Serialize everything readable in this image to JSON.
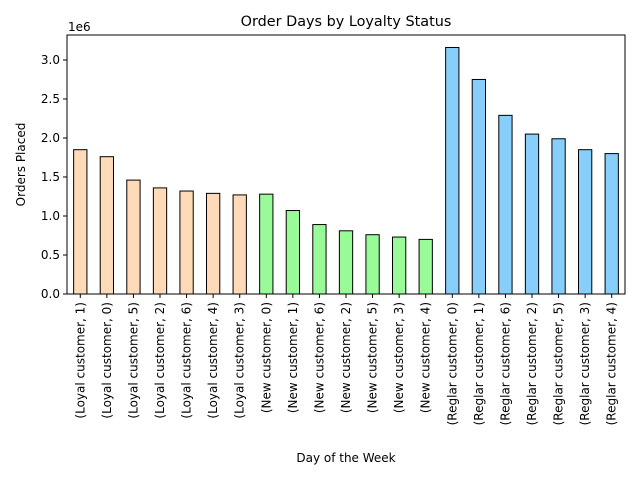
{
  "chart_data": {
    "type": "bar",
    "title": "Order Days by Loyalty Status",
    "xlabel": "Day of the Week",
    "ylabel": "Orders Placed",
    "y_offset_label": "1e6",
    "ylim": [
      0,
      3.32
    ],
    "yticks": [
      0.0,
      0.5,
      1.0,
      1.5,
      2.0,
      2.5,
      3.0
    ],
    "ytick_labels": [
      "0.0",
      "0.5",
      "1.0",
      "1.5",
      "2.0",
      "2.5",
      "3.0"
    ],
    "grid": false,
    "legend": "none",
    "categories": [
      "(Loyal customer, 1)",
      "(Loyal customer, 0)",
      "(Loyal customer, 5)",
      "(Loyal customer, 2)",
      "(Loyal customer, 6)",
      "(Loyal customer, 4)",
      "(Loyal customer, 3)",
      "(New customer, 0)",
      "(New customer, 1)",
      "(New customer, 6)",
      "(New customer, 2)",
      "(New customer, 5)",
      "(New customer, 3)",
      "(New customer, 4)",
      "(Reglar customer, 0)",
      "(Reglar customer, 1)",
      "(Reglar customer, 6)",
      "(Reglar customer, 2)",
      "(Reglar customer, 5)",
      "(Reglar customer, 3)",
      "(Reglar customer, 4)"
    ],
    "values": [
      1.85,
      1.76,
      1.46,
      1.36,
      1.32,
      1.29,
      1.27,
      1.28,
      1.07,
      0.89,
      0.81,
      0.76,
      0.73,
      0.7,
      3.16,
      2.75,
      2.29,
      2.05,
      1.99,
      1.85,
      1.8
    ],
    "bar_colors": [
      "#ffdab9",
      "#ffdab9",
      "#ffdab9",
      "#ffdab9",
      "#ffdab9",
      "#ffdab9",
      "#ffdab9",
      "#98fb98",
      "#98fb98",
      "#98fb98",
      "#98fb98",
      "#98fb98",
      "#98fb98",
      "#98fb98",
      "#87cefa",
      "#87cefa",
      "#87cefa",
      "#87cefa",
      "#87cefa",
      "#87cefa",
      "#87cefa"
    ],
    "edge_color": "#000000"
  }
}
